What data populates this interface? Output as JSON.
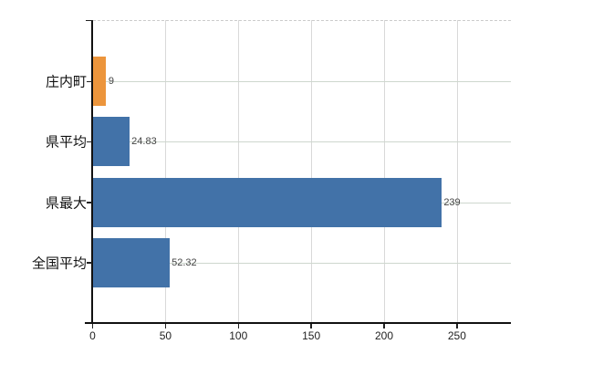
{
  "chart_data": {
    "type": "bar",
    "orientation": "horizontal",
    "title": "",
    "xlabel": "",
    "ylabel": "",
    "legend": "none",
    "grid": true,
    "categories": [
      "庄内町",
      "県平均",
      "県最大",
      "全国平均"
    ],
    "values": [
      9,
      24.83,
      239,
      52.32
    ],
    "value_labels": [
      "9",
      "24.83",
      "239",
      "52.32"
    ],
    "bar_colors": [
      "#ec953c",
      "#4272a8",
      "#4272a8",
      "#4272a8"
    ],
    "x_ticks": [
      0,
      50,
      100,
      150,
      200,
      250
    ],
    "x_tick_labels": [
      "0",
      "50",
      "100",
      "150",
      "200",
      "250"
    ],
    "xlim": [
      0,
      287
    ]
  },
  "colors": {
    "background": "#ffffff",
    "axis": "#111111",
    "bar_highlight_orange": "#ec953c",
    "bar_default_blue": "#4272a8",
    "gridline_vertical": "#d9d9d9",
    "gridline_horizontal": "#ced7ce",
    "gridline_top_dashed": "#cccccc",
    "value_label_text": "#444444",
    "category_label_text": "#111111",
    "x_tick_label_text": "#222222"
  }
}
